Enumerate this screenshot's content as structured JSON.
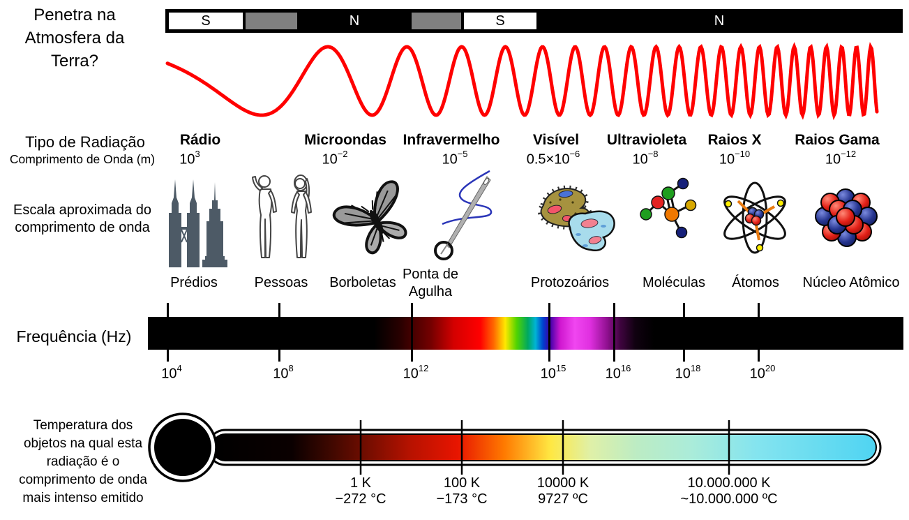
{
  "atmosphere": {
    "question_lines": [
      "Penetra na",
      "Atmosfera da",
      "Terra?"
    ],
    "segments": [
      {
        "label": "S"
      },
      {
        "label": ""
      },
      {
        "label": "N"
      },
      {
        "label": ""
      },
      {
        "label": "S"
      },
      {
        "label": "N"
      }
    ]
  },
  "radiation": {
    "row_label": "Tipo de Radiação",
    "wavelength_row_label": "Comprimento de Onda (m)",
    "types": [
      {
        "label": "Rádio",
        "wl_base": "10",
        "wl_exp": "3"
      },
      {
        "label": "Microondas",
        "wl_base": "10",
        "wl_exp": "−2"
      },
      {
        "label": "Infravermelho",
        "wl_base": "10",
        "wl_exp": "−5"
      },
      {
        "label": "Visível",
        "wl_base": "0.5×10",
        "wl_exp": "−6"
      },
      {
        "label": "Ultravioleta",
        "wl_base": "10",
        "wl_exp": "−8"
      },
      {
        "label": "Raios X",
        "wl_base": "10",
        "wl_exp": "−10"
      },
      {
        "label": "Raios Gama",
        "wl_base": "10",
        "wl_exp": "−12"
      }
    ]
  },
  "scale": {
    "row_label_lines": [
      "Escala aproximada do",
      "comprimento de onda"
    ],
    "items": [
      {
        "label": "Prédios",
        "icon": "buildings-icon"
      },
      {
        "label": "Pessoas",
        "icon": "people-icon"
      },
      {
        "label": "Borboletas",
        "icon": "butterfly-icon"
      },
      {
        "label": "Ponta de Agulha",
        "icon": "needle-icon"
      },
      {
        "label": "Protozoários",
        "icon": "protozoa-icon"
      },
      {
        "label": "Moléculas",
        "icon": "molecule-icon"
      },
      {
        "label": "Átomos",
        "icon": "atom-icon"
      },
      {
        "label": "Núcleo Atômico",
        "icon": "nucleus-icon"
      }
    ]
  },
  "frequency": {
    "row_label": "Frequência (Hz)",
    "ticks": [
      {
        "base": "10",
        "exp": "4"
      },
      {
        "base": "10",
        "exp": "8"
      },
      {
        "base": "10",
        "exp": "12"
      },
      {
        "base": "10",
        "exp": "15"
      },
      {
        "base": "10",
        "exp": "16"
      },
      {
        "base": "10",
        "exp": "18"
      },
      {
        "base": "10",
        "exp": "20"
      }
    ]
  },
  "thermometer": {
    "description_lines": [
      "Temperatura dos",
      "objetos na qual esta",
      "radiação é o",
      "comprimento de onda",
      "mais intenso emitido"
    ],
    "ticks": [
      {
        "kelvin": "1 K",
        "celsius": "−272 °C"
      },
      {
        "kelvin": "100 K",
        "celsius": "−173 °C"
      },
      {
        "kelvin": "10000 K",
        "celsius": "9727 ºC"
      },
      {
        "kelvin": "10.000.000 K",
        "celsius": "~10.000.000 ºC"
      }
    ]
  },
  "colors": {
    "wave": "#ff0000",
    "segment_gray": "#808080",
    "buildings": "#4d5a66"
  }
}
